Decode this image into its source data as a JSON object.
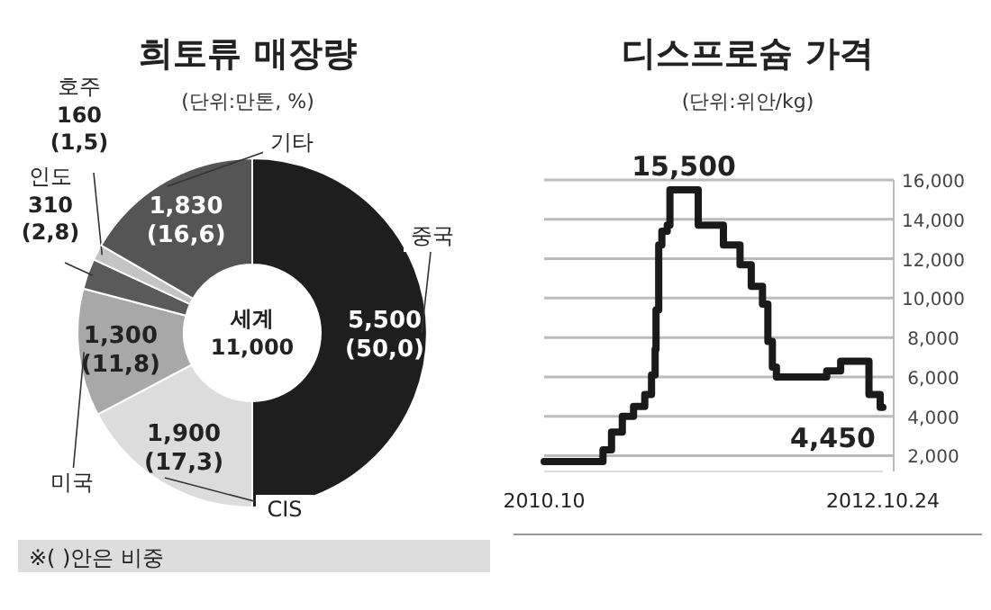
{
  "chart_data": [
    {
      "type": "donut",
      "title": "희토류 매장량",
      "subtitle": "(단위:만톤, %)",
      "categories": [
        "중국",
        "CIS",
        "미국",
        "인도",
        "호주",
        "기타"
      ],
      "values": [
        5500,
        1900,
        1300,
        310,
        160,
        1830
      ],
      "colors": [
        "#1e1e1e",
        "#dcdcdc",
        "#a8a8a8",
        "#5a5a5a",
        "#c4c4c4",
        "#555555"
      ],
      "value_labels": [
        "5,500\n(50,0)",
        "1,900\n(17,3)",
        "1,300\n(11,8)",
        "310\n(2,8)",
        "160\n(1,5)",
        "1,830\n(16,6)"
      ],
      "annotations": [
        "세계\n11,000",
        "※( )안은 비중"
      ]
    },
    {
      "type": "step",
      "title": "디스프로슘 가격",
      "subtitle": "(단위:위안/kg)",
      "x": [
        "2010-10-01",
        "2011-02-09",
        "2011-02-28",
        "2011-03-24",
        "2011-04-18",
        "2011-05-13",
        "2011-05-28",
        "2011-06-05",
        "2011-06-07",
        "2011-06-13",
        "2011-06-20",
        "2011-07-02",
        "2011-07-08",
        "2011-09-09",
        "2011-11-04",
        "2011-12-11",
        "2012-01-05",
        "2012-01-30",
        "2012-02-11",
        "2012-02-21",
        "2012-03-01",
        "2012-06-21",
        "2012-07-22",
        "2012-09-23",
        "2012-10-18",
        "2012-10-24"
      ],
      "series": [
        {
          "color": "#1a1a1a",
          "values": [
            1700,
            2300,
            3200,
            4000,
            4500,
            5100,
            6100,
            7400,
            9400,
            12700,
            13400,
            13700,
            15500,
            13700,
            12700,
            11700,
            10600,
            9700,
            7800,
            6500,
            6000,
            6300,
            6800,
            5100,
            4450,
            4450
          ]
        }
      ],
      "xlim": [
        "2010-10-01",
        "2012-10-24"
      ],
      "xticks": [
        {
          "value": "2010-10-01",
          "label": "2010.10"
        },
        {
          "value": "2012-10-24",
          "label": "2012.10.24"
        }
      ],
      "ylim": [
        1200,
        16000
      ],
      "yticks": [
        {
          "value": 2000,
          "label": "2,000"
        },
        {
          "value": 4000,
          "label": "4,000"
        },
        {
          "value": 6000,
          "label": "6,000"
        },
        {
          "value": 8000,
          "label": "8,000"
        },
        {
          "value": 10000,
          "label": "10,000"
        },
        {
          "value": 12000,
          "label": "12,000"
        },
        {
          "value": 14000,
          "label": "14,000"
        },
        {
          "value": 16000,
          "label": "16,000"
        }
      ],
      "grid": "y",
      "annotations": [
        {
          "text": "15,500",
          "x": "2011-08-08",
          "y": 15500
        },
        {
          "text": "4,450",
          "x": "2012-10-24",
          "y": 4450
        }
      ]
    }
  ]
}
